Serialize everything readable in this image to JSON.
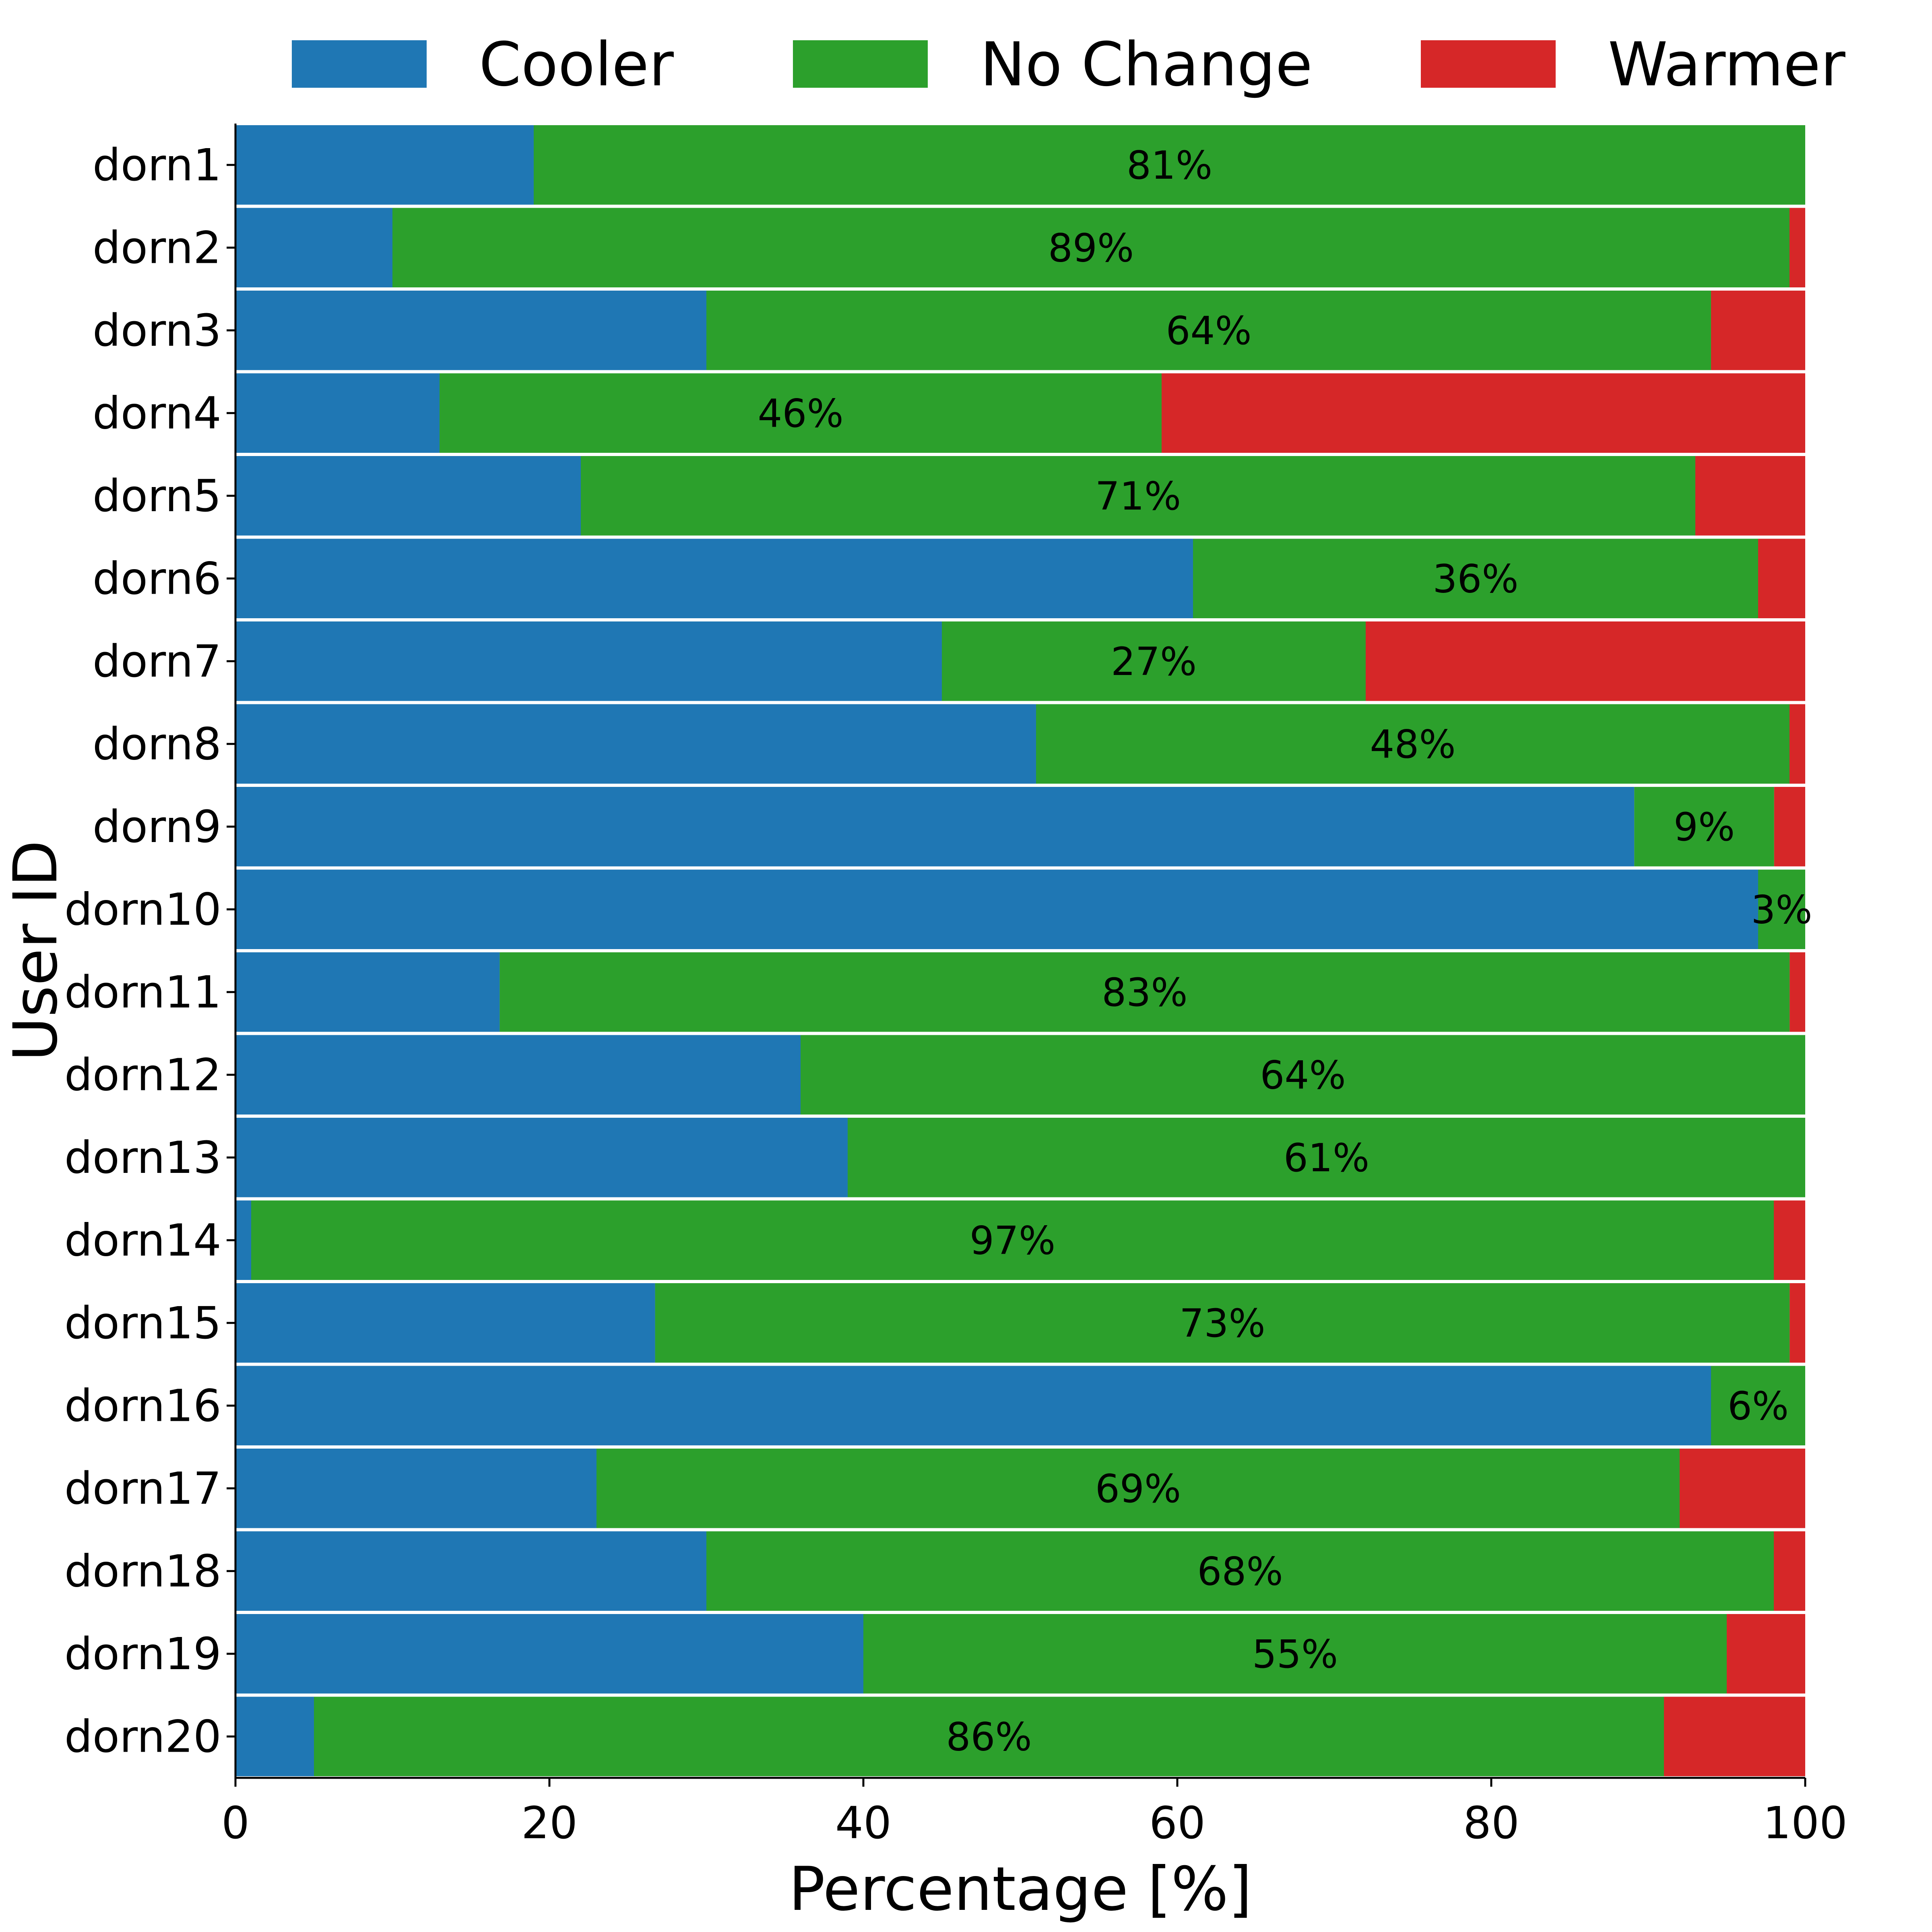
{
  "chart_data": {
    "type": "bar",
    "orientation": "horizontal",
    "stacked": true,
    "xlabel": "Percentage [%]",
    "ylabel": "User ID",
    "xlim": [
      0,
      100
    ],
    "xticks": [
      "0",
      "20",
      "40",
      "60",
      "80",
      "100"
    ],
    "grid": false,
    "legend_position": "top",
    "categories": [
      "dorn1",
      "dorn2",
      "dorn3",
      "dorn4",
      "dorn5",
      "dorn6",
      "dorn7",
      "dorn8",
      "dorn9",
      "dorn10",
      "dorn11",
      "dorn12",
      "dorn13",
      "dorn14",
      "dorn15",
      "dorn16",
      "dorn17",
      "dorn18",
      "dorn19",
      "dorn20"
    ],
    "series": [
      {
        "name": "Cooler",
        "color": "#1f77b4",
        "values": [
          19,
          10,
          30,
          13,
          22,
          61,
          45,
          51,
          90,
          97,
          17,
          36,
          39,
          1,
          27,
          94,
          23,
          30,
          40,
          5
        ]
      },
      {
        "name": "No Change",
        "color": "#2ca02c",
        "values": [
          81,
          89,
          64,
          46,
          71,
          36,
          27,
          48,
          9,
          3,
          83,
          64,
          61,
          97,
          73,
          6,
          69,
          68,
          55,
          86
        ]
      },
      {
        "name": "Warmer",
        "color": "#d62728",
        "values": [
          0,
          1,
          6,
          41,
          7,
          3,
          28,
          1,
          2,
          0,
          1,
          0,
          0,
          2,
          1,
          0,
          8,
          2,
          5,
          9
        ]
      }
    ],
    "data_labels": [
      "81%",
      "89%",
      "64%",
      "46%",
      "71%",
      "36%",
      "27%",
      "48%",
      "9%",
      "3%",
      "83%",
      "64%",
      "61%",
      "97%",
      "73%",
      "6%",
      "69%",
      "68%",
      "55%",
      "86%"
    ]
  }
}
